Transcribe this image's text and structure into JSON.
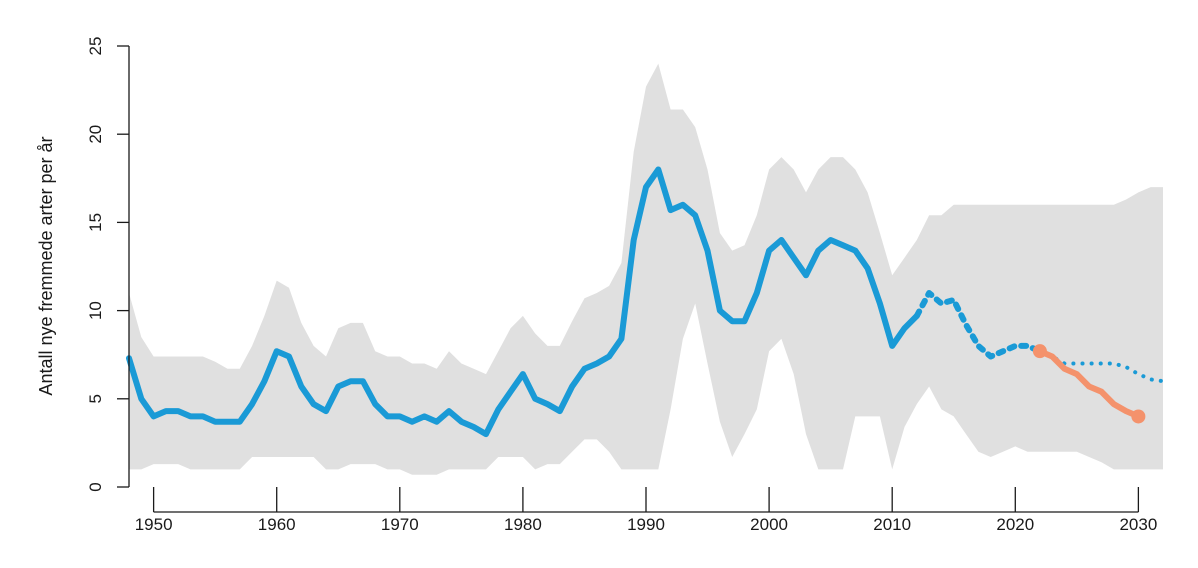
{
  "chart_data": {
    "type": "line",
    "title": "",
    "ylabel": "Antall nye fremmede arter per år",
    "xlabel": "",
    "xlim": [
      1948,
      2032
    ],
    "ylim": [
      0,
      25
    ],
    "x_ticks": [
      "1950",
      "1960",
      "1970",
      "1980",
      "1990",
      "2000",
      "2010",
      "2020",
      "2030"
    ],
    "y_ticks": [
      "0",
      "5",
      "10",
      "15",
      "20",
      "25"
    ],
    "grid": false,
    "colors": {
      "band": "#e0e0e0",
      "observed": "#1a9ad6",
      "projection": "#1a9ad6",
      "target": "#f4926c",
      "axis": "#1a1a1a"
    },
    "band": {
      "x": [
        1948,
        1949,
        1950,
        1951,
        1952,
        1953,
        1954,
        1955,
        1956,
        1957,
        1958,
        1959,
        1960,
        1961,
        1962,
        1963,
        1964,
        1965,
        1966,
        1967,
        1968,
        1969,
        1970,
        1971,
        1972,
        1973,
        1974,
        1975,
        1976,
        1977,
        1978,
        1979,
        1980,
        1981,
        1982,
        1983,
        1984,
        1985,
        1986,
        1987,
        1988,
        1989,
        1990,
        1991,
        1992,
        1993,
        1994,
        1995,
        1996,
        1997,
        1998,
        1999,
        2000,
        2001,
        2002,
        2003,
        2004,
        2005,
        2006,
        2007,
        2008,
        2009,
        2010,
        2011,
        2012,
        2013,
        2014,
        2015,
        2016,
        2017,
        2018,
        2019,
        2020,
        2021,
        2022,
        2023,
        2024,
        2025,
        2026,
        2027,
        2028,
        2029,
        2030,
        2031,
        2032
      ],
      "upper": [
        11,
        8.5,
        7.4,
        7.4,
        7.4,
        7.4,
        7.4,
        7.1,
        6.7,
        6.7,
        8,
        9.7,
        11.7,
        11.3,
        9.3,
        8,
        7.4,
        9,
        9.3,
        9.3,
        7.7,
        7.4,
        7.4,
        7,
        7,
        6.7,
        7.7,
        7,
        6.7,
        6.4,
        7.7,
        9,
        9.7,
        8.7,
        8,
        8,
        9.4,
        10.7,
        11,
        11.4,
        12.7,
        19,
        22.7,
        24,
        21.4,
        21.4,
        20.4,
        18,
        14.4,
        13.4,
        13.7,
        15.4,
        18,
        18.7,
        18,
        16.7,
        18,
        18.7,
        18.7,
        18,
        16.7,
        14.4,
        12,
        13,
        14,
        15.4,
        15.4,
        16,
        16,
        16,
        16,
        16,
        16,
        16,
        16,
        16,
        16,
        16,
        16,
        16,
        16,
        16.3,
        16.7,
        17,
        17
      ],
      "lower": [
        1,
        1,
        1.3,
        1.3,
        1.3,
        1,
        1,
        1,
        1,
        1,
        1.7,
        1.7,
        1.7,
        1.7,
        1.7,
        1.7,
        1,
        1,
        1.3,
        1.3,
        1.3,
        1,
        1,
        0.7,
        0.7,
        0.7,
        1,
        1,
        1,
        1,
        1.7,
        1.7,
        1.7,
        1,
        1.3,
        1.3,
        2,
        2.7,
        2.7,
        2,
        1,
        1,
        1,
        1,
        4.4,
        8.4,
        10.4,
        7,
        3.7,
        1.7,
        3,
        4.4,
        7.7,
        8.4,
        6.4,
        3,
        1,
        1,
        1,
        4,
        4,
        4,
        1,
        3.4,
        4.7,
        5.7,
        4.4,
        4,
        3,
        2,
        1.7,
        2,
        2.3,
        2,
        2,
        2,
        2,
        2,
        1.7,
        1.4,
        1,
        1,
        1,
        1,
        1
      ]
    },
    "series": [
      {
        "style": "solid",
        "x": [
          1948,
          1949,
          1950,
          1951,
          1952,
          1953,
          1954,
          1955,
          1956,
          1957,
          1958,
          1959,
          1960,
          1961,
          1962,
          1963,
          1964,
          1965,
          1966,
          1967,
          1968,
          1969,
          1970,
          1971,
          1972,
          1973,
          1974,
          1975,
          1976,
          1977,
          1978,
          1979,
          1980,
          1981,
          1982,
          1983,
          1984,
          1985,
          1986,
          1987,
          1988,
          1989,
          1990,
          1991,
          1992,
          1993,
          1994,
          1995,
          1996,
          1997,
          1998,
          1999,
          2000,
          2001,
          2002,
          2003,
          2004,
          2005,
          2006,
          2007,
          2008,
          2009,
          2010,
          2011,
          2012
        ],
        "y": [
          7.3,
          5,
          4,
          4.3,
          4.3,
          4,
          4,
          3.7,
          3.7,
          3.7,
          4.7,
          6,
          7.7,
          7.4,
          5.7,
          4.7,
          4.3,
          5.7,
          6,
          6,
          4.7,
          4,
          4,
          3.7,
          4,
          3.7,
          4.3,
          3.7,
          3.4,
          3,
          4.4,
          5.4,
          6.4,
          5,
          4.7,
          4.3,
          5.7,
          6.7,
          7,
          7.4,
          8.4,
          14,
          17,
          18,
          15.7,
          16,
          15.4,
          13.4,
          10,
          9.4,
          9.4,
          11,
          13.4,
          14,
          13,
          12,
          13.4,
          14,
          13.7,
          13.4,
          12.4,
          10.4,
          8,
          9,
          9.7
        ]
      },
      {
        "style": "dashed",
        "x": [
          2012,
          2013,
          2014,
          2015,
          2016,
          2017,
          2018,
          2019,
          2020,
          2021,
          2022
        ],
        "y": [
          9.7,
          11,
          10.4,
          10.6,
          9.2,
          8,
          7.4,
          7.7,
          8,
          8,
          7.7
        ]
      },
      {
        "style": "dotted",
        "x": [
          2022,
          2023,
          2024,
          2025,
          2026,
          2027,
          2028,
          2029,
          2030,
          2031,
          2032
        ],
        "y": [
          7.7,
          7.4,
          7,
          7,
          7,
          7,
          7,
          6.8,
          6.4,
          6.1,
          6
        ]
      },
      {
        "style": "target",
        "x": [
          2022,
          2023,
          2024,
          2025,
          2026,
          2027,
          2028,
          2029,
          2030
        ],
        "y": [
          7.7,
          7.4,
          6.7,
          6.4,
          5.7,
          5.4,
          4.7,
          4.3,
          4
        ]
      }
    ]
  }
}
